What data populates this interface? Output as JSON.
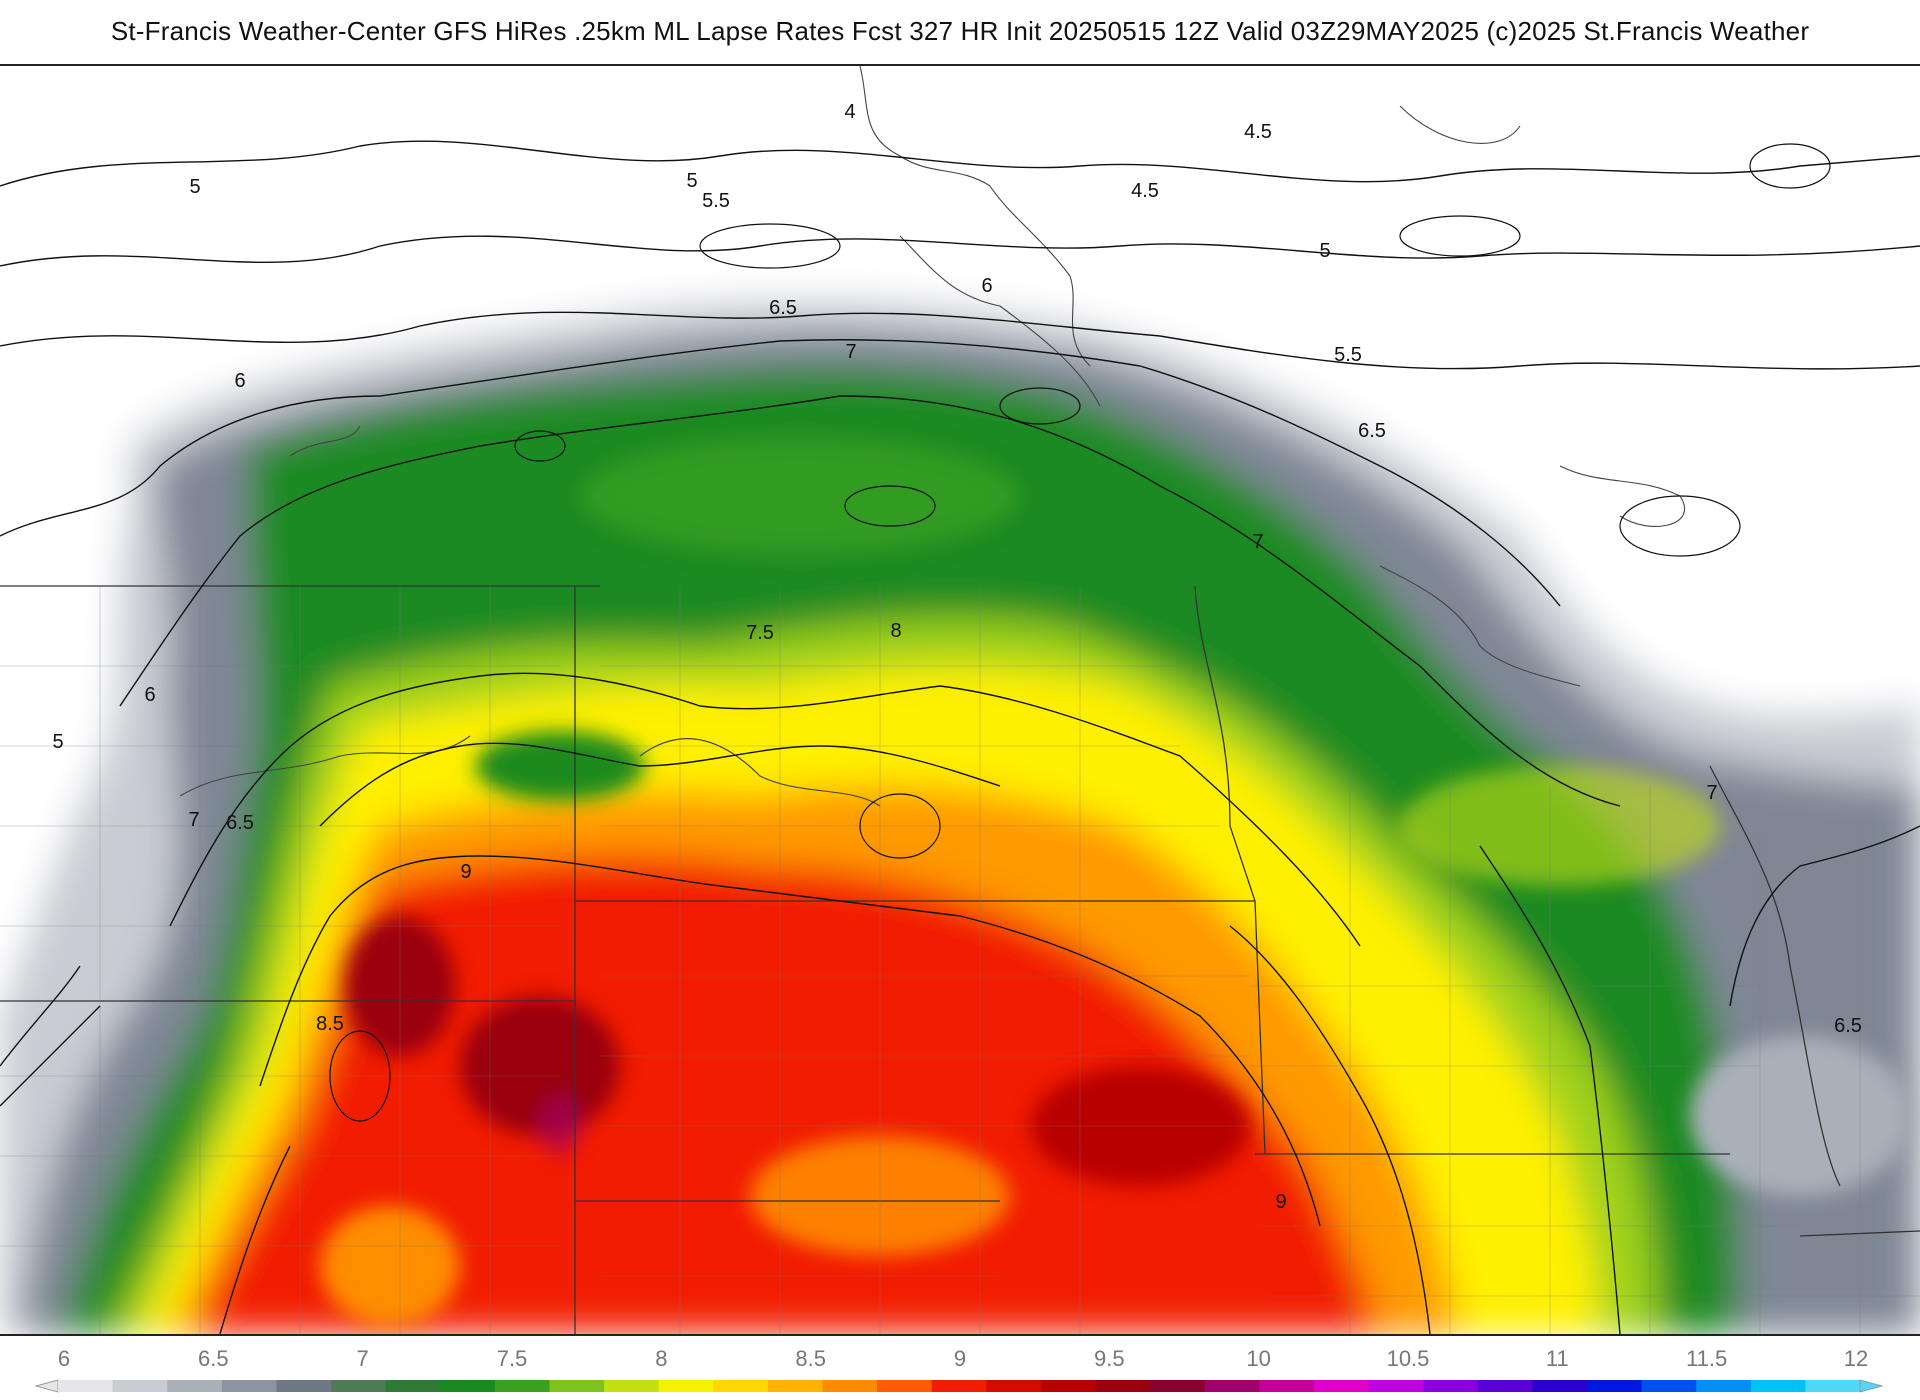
{
  "header": {
    "title": "St-Francis Weather-Center GFS HiRes .25km ML Lapse Rates  Fcst 327 HR Init 20250515 12Z  Valid 03Z29MAY2025    (c)2025 St.Francis Weather"
  },
  "map": {
    "contour_labels": [
      {
        "id": "c-4",
        "text": "4"
      },
      {
        "id": "c-45-a",
        "text": "4.5"
      },
      {
        "id": "c-45-b",
        "text": "4.5"
      },
      {
        "id": "c-5-a",
        "text": "5"
      },
      {
        "id": "c-5-b",
        "text": "5"
      },
      {
        "id": "c-5-c",
        "text": "5"
      },
      {
        "id": "c-5-d",
        "text": "5"
      },
      {
        "id": "c-55-a",
        "text": "5.5"
      },
      {
        "id": "c-55-b",
        "text": "5.5"
      },
      {
        "id": "c-6-a",
        "text": "6"
      },
      {
        "id": "c-6-b",
        "text": "6"
      },
      {
        "id": "c-6-c",
        "text": "6"
      },
      {
        "id": "c-65-a",
        "text": "6.5"
      },
      {
        "id": "c-65-b",
        "text": "6.5"
      },
      {
        "id": "c-65-c",
        "text": "6.5"
      },
      {
        "id": "c-65-d",
        "text": "6.5"
      },
      {
        "id": "c-7-a",
        "text": "7"
      },
      {
        "id": "c-7-b",
        "text": "7"
      },
      {
        "id": "c-7-c",
        "text": "7"
      },
      {
        "id": "c-7-d",
        "text": "7"
      },
      {
        "id": "c-75",
        "text": "7.5"
      },
      {
        "id": "c-8",
        "text": "8"
      },
      {
        "id": "c-85",
        "text": "8.5"
      },
      {
        "id": "c-9-a",
        "text": "9"
      },
      {
        "id": "c-9-b",
        "text": "9"
      }
    ]
  },
  "colorbar": {
    "ticks": [
      "6",
      "6.5",
      "7",
      "7.5",
      "8",
      "8.5",
      "9",
      "9.5",
      "10",
      "10.5",
      "11",
      "11.5",
      "12"
    ],
    "colors": [
      "#e6e6ea",
      "#c9ccd3",
      "#aab0ba",
      "#8c94a0",
      "#6f7885",
      "#4f7b56",
      "#2f7a36",
      "#1a8a1f",
      "#3aa020",
      "#7ec31c",
      "#c4df10",
      "#f5f200",
      "#ffd600",
      "#ffb300",
      "#ff8c00",
      "#ff5a00",
      "#f21d00",
      "#d40a00",
      "#b80000",
      "#9a0010",
      "#8a0030",
      "#a0006a",
      "#c4009a",
      "#e000c8",
      "#c000e0",
      "#8a00e0",
      "#5a00d8",
      "#2a00d0",
      "#0018e0",
      "#0050f0",
      "#0090f6",
      "#00c0f8",
      "#4fd8f8"
    ]
  }
}
